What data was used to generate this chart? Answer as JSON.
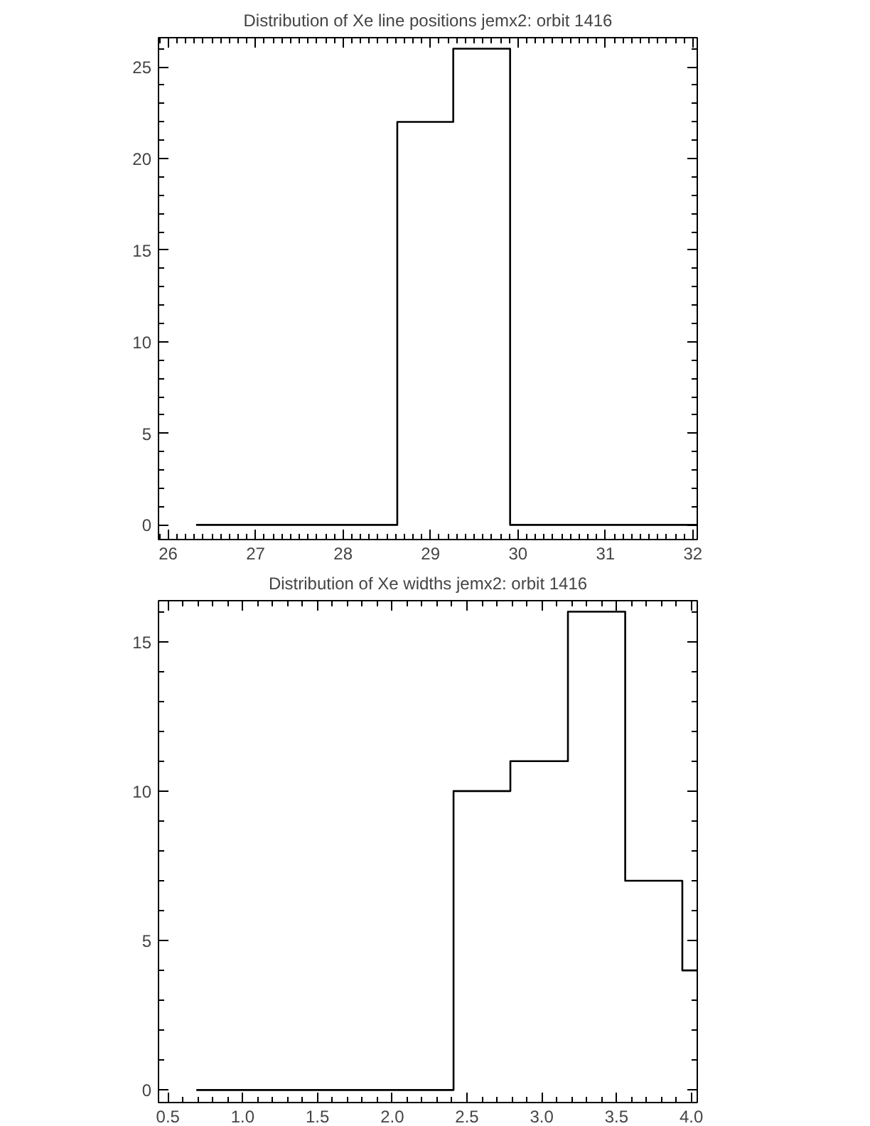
{
  "chart_data": [
    {
      "type": "histogram",
      "title": "Distribution of Xe line positions jemx2: orbit 1416",
      "bins": [
        26.32,
        28.62,
        29.26,
        29.91,
        32.05
      ],
      "values": [
        0,
        22,
        26,
        0
      ],
      "color": "#000000",
      "xlim": [
        25.89,
        32.05
      ],
      "xticks": [
        26,
        27,
        28,
        29,
        30,
        31,
        32
      ],
      "ylim": [
        -0.8,
        26.6
      ],
      "yticks": [
        0,
        5,
        10,
        15,
        20,
        25
      ],
      "grid": false
    },
    {
      "type": "histogram",
      "title": "Distribution of Xe widths jemx2: orbit 1416",
      "bins": [
        0.69,
        2.41,
        2.79,
        3.175,
        3.558,
        3.94,
        4.04
      ],
      "values": [
        0,
        10,
        11,
        16,
        7,
        4
      ],
      "color": "#000000",
      "xlim": [
        0.437,
        4.04
      ],
      "xticks": [
        {
          "value": 0.5,
          "label": "0.5"
        },
        {
          "value": 1.0,
          "label": "1.0"
        },
        {
          "value": 1.5,
          "label": "1.5"
        },
        {
          "value": 2.0,
          "label": "2.0"
        },
        {
          "value": 2.5,
          "label": "2.5"
        },
        {
          "value": 3.0,
          "label": "3.0"
        },
        {
          "value": 3.5,
          "label": "3.5"
        },
        {
          "value": 4.0,
          "label": "4.0"
        }
      ],
      "ylim": [
        -0.42,
        16.37
      ],
      "yticks": [
        0,
        5,
        10,
        15
      ],
      "grid": false
    }
  ]
}
